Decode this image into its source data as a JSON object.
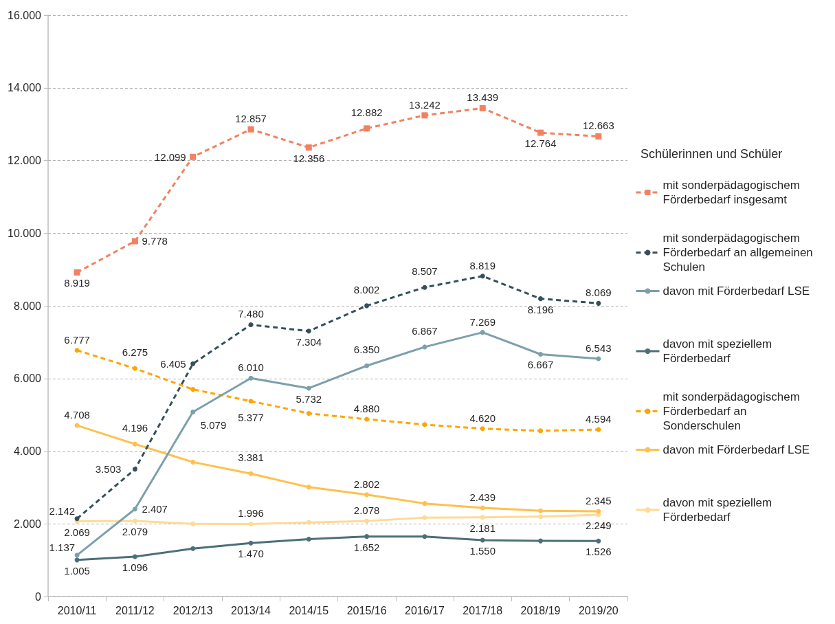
{
  "chart_data": {
    "type": "line",
    "categories": [
      "2010/11",
      "2011/12",
      "2012/13",
      "2013/14",
      "2014/15",
      "2015/16",
      "2016/17",
      "2017/18",
      "2018/19",
      "2019/20"
    ],
    "ylim": [
      0,
      16000
    ],
    "yticks": [
      0,
      {
        "value": 2000,
        "label": "2.000"
      },
      {
        "value": 4000,
        "label": "4.000"
      },
      {
        "value": 6000,
        "label": "6.000"
      },
      {
        "value": 8000,
        "label": "8.000"
      },
      {
        "value": 10000,
        "label": "10.000"
      },
      {
        "value": 12000,
        "label": "12.000"
      },
      {
        "value": 14000,
        "label": "14.000"
      },
      {
        "value": 16000,
        "label": "16.000"
      }
    ],
    "grid": "y",
    "legend": "right",
    "legend_title": "Schülerinnen und Schüler",
    "series": [
      {
        "name": "mit sonderpädagogischem Förderbedarf insgesamt",
        "color": "#f08262",
        "marker": "square",
        "line_style": "dashed",
        "values": [
          8919,
          9778,
          12099,
          12857,
          12356,
          12882,
          13242,
          13439,
          12764,
          12663
        ],
        "value_labels": [
          "8.919",
          "9.778",
          "12.099",
          "12.857",
          "12.356",
          "12.882",
          "13.242",
          "13.439",
          "12.764",
          "12.663"
        ]
      },
      {
        "name": "mit sonderpädagogischem Förderbedarf an allgemeinen Schulen",
        "color": "#35505a",
        "marker": "circle",
        "line_style": "dashed",
        "values": [
          2142,
          3503,
          6405,
          7480,
          7304,
          8002,
          8507,
          8819,
          8196,
          8069
        ],
        "value_labels": [
          "2.142",
          "3.503",
          "6.405",
          "7.480",
          "7.304",
          "8.002",
          "8.507",
          "8.819",
          "8.196",
          "8.069"
        ]
      },
      {
        "name": "davon mit Förderbedarf LSE",
        "color": "#7ba0ab",
        "marker": "circle",
        "line_style": "solid",
        "values": [
          1137,
          2407,
          5079,
          6010,
          5732,
          6350,
          6867,
          7269,
          6667,
          6543
        ],
        "value_labels": [
          "1.137",
          "2.407",
          "5.079",
          "6.010",
          "5.732",
          "6.350",
          "6.867",
          "7.269",
          "6.667",
          "6.543"
        ]
      },
      {
        "name": "davon mit speziellem Förderbedarf",
        "color": "#4d6f79",
        "marker": "circle",
        "line_style": "solid",
        "values": [
          1005,
          1096,
          1320,
          1470,
          1580,
          1652,
          1650,
          1550,
          1530,
          1526
        ],
        "value_labels": [
          "1.005",
          "1.096",
          null,
          "1.470",
          null,
          "1.652",
          null,
          "1.550",
          null,
          "1.526"
        ]
      },
      {
        "name": "mit sonderpädagogischem Förderbedarf an Sonderschulen",
        "color": "#ffa500",
        "marker": "circle",
        "line_style": "dashed",
        "values": [
          6777,
          6275,
          5700,
          5377,
          5040,
          4880,
          4730,
          4620,
          4560,
          4594
        ],
        "value_labels": [
          "6.777",
          "6.275",
          null,
          "5.377",
          null,
          "4.880",
          null,
          "4.620",
          null,
          "4.594"
        ]
      },
      {
        "name": "davon mit Förderbedarf LSE",
        "color": "#ffc04d",
        "marker": "circle",
        "line_style": "solid",
        "values": [
          4708,
          4196,
          3700,
          3381,
          3010,
          2802,
          2560,
          2439,
          2360,
          2345
        ],
        "value_labels": [
          "4.708",
          "4.196",
          null,
          "3.381",
          null,
          "2.802",
          null,
          "2.439",
          null,
          "2.345"
        ]
      },
      {
        "name": "davon mit speziellem Förderbedarf",
        "color": "#ffda94",
        "marker": "circle",
        "line_style": "solid",
        "values": [
          2069,
          2079,
          2000,
          1996,
          2040,
          2078,
          2170,
          2181,
          2200,
          2249
        ],
        "value_labels": [
          "2.069",
          "2.079",
          null,
          "1.996",
          null,
          "2.078",
          null,
          "2.181",
          null,
          "2.249"
        ]
      }
    ]
  }
}
